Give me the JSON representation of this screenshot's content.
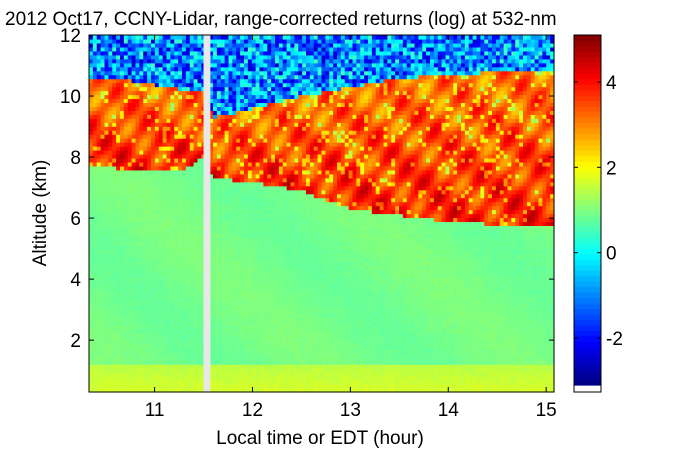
{
  "chart_data": {
    "type": "heatmap",
    "title": "2012 Oct17, CCNY-Lidar, range-corrected returns (log) at 532-nm",
    "xlabel": "Local time or EDT (hour)",
    "ylabel": "Altitude (km)",
    "xlim": [
      10.33,
      15.08
    ],
    "ylim": [
      0.3,
      12.0
    ],
    "x_ticks": [
      11,
      12,
      13,
      14,
      15
    ],
    "x_tick_labels": [
      "11",
      "12",
      "13",
      "14",
      "15"
    ],
    "y_ticks": [
      2,
      4,
      6,
      8,
      10,
      12
    ],
    "y_tick_labels": [
      "2",
      "4",
      "6",
      "8",
      "10",
      "12"
    ],
    "colorbar": {
      "min": -3.1,
      "max": 5.1,
      "colormap": "jet",
      "ticks": [
        -2,
        0,
        2,
        4
      ],
      "tick_labels": [
        "-2",
        "0",
        "2",
        "4"
      ]
    },
    "data_gap": {
      "x_start": 11.5,
      "x_end": 11.57
    },
    "cloud_layer": {
      "time": [
        10.33,
        10.8,
        11.3,
        11.5,
        11.6,
        12.0,
        12.5,
        13.0,
        13.5,
        14.0,
        14.5,
        15.08
      ],
      "base_km": [
        7.7,
        7.6,
        7.6,
        8.0,
        7.3,
        7.2,
        6.9,
        6.3,
        6.1,
        5.9,
        5.8,
        5.8
      ],
      "top_km": [
        10.6,
        10.5,
        10.2,
        10.2,
        9.3,
        9.6,
        10.0,
        10.3,
        10.6,
        10.7,
        10.8,
        10.8
      ],
      "log_return_range": [
        2.5,
        5.0
      ]
    },
    "boundary_layer_top_km": 1.2,
    "clear_sky_log_return": 1.0,
    "noise_above_cloud_log_return": [
      -2.5,
      0.5
    ]
  }
}
